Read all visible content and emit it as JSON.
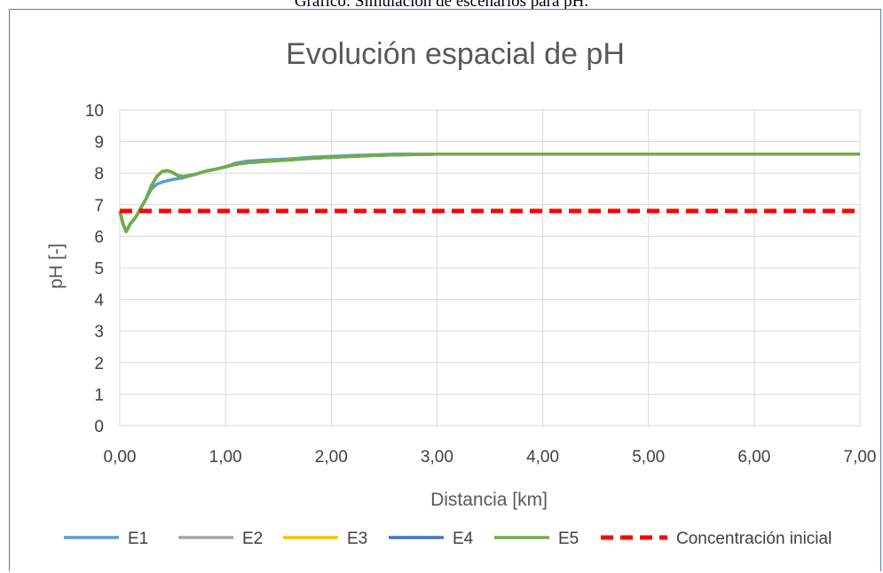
{
  "caption": "Gráfico: Simulación de escenarios para pH.",
  "chart_data": {
    "type": "line",
    "title": "Evolución espacial de pH",
    "xlabel": "Distancia [km]",
    "ylabel": "pH [-]",
    "xlim": [
      0,
      7
    ],
    "ylim": [
      0,
      10
    ],
    "x_ticks": [
      0,
      1,
      2,
      3,
      4,
      5,
      6,
      7
    ],
    "x_tick_labels": [
      "0,00",
      "1,00",
      "2,00",
      "3,00",
      "4,00",
      "5,00",
      "6,00",
      "7,00"
    ],
    "y_ticks": [
      0,
      1,
      2,
      3,
      4,
      5,
      6,
      7,
      8,
      9,
      10
    ],
    "y_tick_labels": [
      "0",
      "1",
      "2",
      "3",
      "4",
      "5",
      "6",
      "7",
      "8",
      "9",
      "10"
    ],
    "grid": true,
    "legend_position": "bottom",
    "series": [
      {
        "name": "E1",
        "color": "#5b9bd5",
        "style": "solid",
        "x": [
          0,
          0.03,
          0.06,
          0.1,
          0.15,
          0.2,
          0.25,
          0.3,
          0.35,
          0.4,
          0.5,
          0.6,
          0.7,
          0.8,
          0.9,
          1.0,
          1.1,
          1.2,
          1.4,
          1.6,
          1.8,
          2.0,
          2.2,
          2.4,
          2.6,
          3.0,
          4.0,
          5.0,
          6.0,
          7.0
        ],
        "y": [
          6.8,
          6.4,
          6.15,
          6.4,
          6.6,
          6.9,
          7.2,
          7.5,
          7.65,
          7.72,
          7.8,
          7.85,
          7.95,
          8.05,
          8.12,
          8.2,
          8.32,
          8.38,
          8.42,
          8.45,
          8.5,
          8.53,
          8.56,
          8.58,
          8.6,
          8.6,
          8.6,
          8.6,
          8.6,
          8.6
        ]
      },
      {
        "name": "E2",
        "color": "#a5a5a5",
        "style": "solid",
        "x": [
          0,
          0.03,
          0.06,
          0.1,
          0.15,
          0.2,
          0.25,
          0.3,
          0.35,
          0.4,
          0.45,
          0.5,
          0.55,
          0.6,
          0.7,
          0.8,
          0.9,
          1.0,
          1.1,
          1.2,
          1.4,
          1.6,
          1.8,
          2.0,
          2.2,
          2.4,
          2.6,
          3.0,
          4.0,
          5.0,
          6.0,
          7.0
        ],
        "y": [
          6.8,
          6.4,
          6.15,
          6.4,
          6.6,
          6.9,
          7.2,
          7.6,
          7.9,
          8.05,
          8.08,
          8.02,
          7.92,
          7.9,
          7.95,
          8.05,
          8.12,
          8.2,
          8.28,
          8.33,
          8.38,
          8.42,
          8.47,
          8.5,
          8.53,
          8.56,
          8.58,
          8.6,
          8.6,
          8.6,
          8.6,
          8.6
        ]
      },
      {
        "name": "E3",
        "color": "#ffc000",
        "style": "solid",
        "x": [
          0,
          0.03,
          0.06,
          0.1,
          0.15,
          0.2,
          0.25,
          0.3,
          0.35,
          0.4,
          0.45,
          0.5,
          0.55,
          0.6,
          0.7,
          0.8,
          0.9,
          1.0,
          1.1,
          1.2,
          1.4,
          1.6,
          1.8,
          2.0,
          2.2,
          2.4,
          2.6,
          3.0,
          4.0,
          5.0,
          6.0,
          7.0
        ],
        "y": [
          6.8,
          6.4,
          6.15,
          6.4,
          6.6,
          6.9,
          7.2,
          7.6,
          7.9,
          8.05,
          8.08,
          8.02,
          7.92,
          7.9,
          7.95,
          8.05,
          8.12,
          8.2,
          8.28,
          8.33,
          8.38,
          8.42,
          8.47,
          8.5,
          8.53,
          8.56,
          8.58,
          8.6,
          8.6,
          8.6,
          8.6,
          8.6
        ]
      },
      {
        "name": "E4",
        "color": "#4472c4",
        "style": "solid",
        "x": [
          0,
          0.03,
          0.06,
          0.1,
          0.15,
          0.2,
          0.25,
          0.3,
          0.35,
          0.4,
          0.45,
          0.5,
          0.55,
          0.6,
          0.7,
          0.8,
          0.9,
          1.0,
          1.1,
          1.2,
          1.4,
          1.6,
          1.8,
          2.0,
          2.2,
          2.4,
          2.6,
          3.0,
          4.0,
          5.0,
          6.0,
          7.0
        ],
        "y": [
          6.8,
          6.4,
          6.15,
          6.4,
          6.6,
          6.9,
          7.2,
          7.6,
          7.9,
          8.05,
          8.08,
          8.02,
          7.92,
          7.9,
          7.95,
          8.05,
          8.12,
          8.2,
          8.28,
          8.33,
          8.38,
          8.42,
          8.47,
          8.5,
          8.53,
          8.56,
          8.58,
          8.6,
          8.6,
          8.6,
          8.6,
          8.6
        ]
      },
      {
        "name": "E5",
        "color": "#70ad47",
        "style": "solid",
        "x": [
          0,
          0.03,
          0.06,
          0.1,
          0.15,
          0.2,
          0.25,
          0.3,
          0.35,
          0.4,
          0.45,
          0.5,
          0.55,
          0.6,
          0.7,
          0.8,
          0.9,
          1.0,
          1.1,
          1.2,
          1.4,
          1.6,
          1.8,
          2.0,
          2.2,
          2.4,
          2.6,
          3.0,
          4.0,
          5.0,
          6.0,
          7.0
        ],
        "y": [
          6.8,
          6.4,
          6.15,
          6.4,
          6.6,
          6.9,
          7.2,
          7.6,
          7.9,
          8.05,
          8.08,
          8.02,
          7.92,
          7.9,
          7.95,
          8.05,
          8.12,
          8.2,
          8.28,
          8.33,
          8.38,
          8.42,
          8.47,
          8.5,
          8.53,
          8.56,
          8.58,
          8.6,
          8.6,
          8.6,
          8.6,
          8.6
        ]
      },
      {
        "name": "Concentración inicial",
        "color": "#ff0000",
        "style": "dashed",
        "x": [
          0,
          7
        ],
        "y": [
          6.8,
          6.8
        ]
      }
    ]
  }
}
